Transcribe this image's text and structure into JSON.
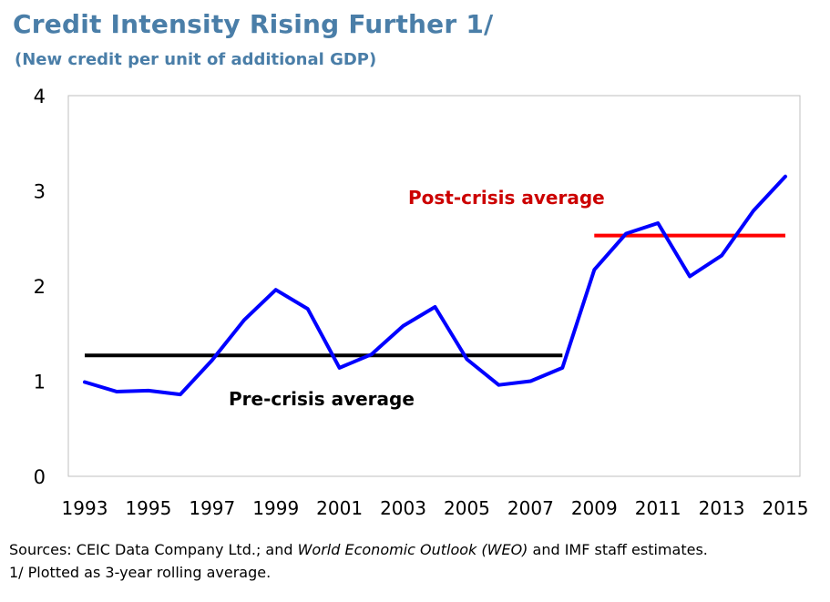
{
  "title": "Credit Intensity Rising Further 1/",
  "subtitle": "(New credit per unit of additional GDP)",
  "colors": {
    "title": "#4a7ea8",
    "series": "#0000ff",
    "pre_crisis": "#000000",
    "post_crisis": "#ff0000",
    "post_label": "#cc0000",
    "frame": "#bfbfbf"
  },
  "chart_data": {
    "type": "line",
    "title": "Credit Intensity Rising Further 1/",
    "subtitle": "(New credit per unit of additional GDP)",
    "xlabel": "",
    "ylabel": "",
    "ylim": [
      0,
      4
    ],
    "xlim": [
      1993,
      2015
    ],
    "y_ticks": [
      "0",
      "1",
      "2",
      "3",
      "4"
    ],
    "x_ticks": [
      "1993",
      "1995",
      "1997",
      "1999",
      "2001",
      "2003",
      "2005",
      "2007",
      "2009",
      "2011",
      "2013",
      "2015"
    ],
    "grid": false,
    "x": [
      1993,
      1994,
      1995,
      1996,
      1997,
      1998,
      1999,
      2000,
      2001,
      2002,
      2003,
      2004,
      2005,
      2006,
      2007,
      2008,
      2009,
      2010,
      2011,
      2012,
      2013,
      2014,
      2015
    ],
    "series": [
      {
        "values": [
          0.99,
          0.89,
          0.9,
          0.86,
          1.22,
          1.64,
          1.96,
          1.76,
          1.14,
          1.28,
          1.58,
          1.78,
          1.23,
          0.96,
          1.0,
          1.14,
          2.17,
          2.55,
          2.66,
          2.1,
          2.32,
          2.79,
          3.15
        ]
      }
    ],
    "reference_lines": [
      {
        "label": "Pre-crisis average",
        "value": 1.27,
        "x_start": 1993,
        "x_end": 2008
      },
      {
        "label": "Post-crisis average",
        "value": 2.53,
        "x_start": 2009,
        "x_end": 2015
      }
    ]
  },
  "footnotes": {
    "sources_prefix": "Sources: CEIC Data Company Ltd.; and ",
    "sources_italic": "World Economic Outlook (WEO)",
    "sources_suffix": " and IMF staff estimates.",
    "note": "1/ Plotted as 3-year rolling average."
  }
}
